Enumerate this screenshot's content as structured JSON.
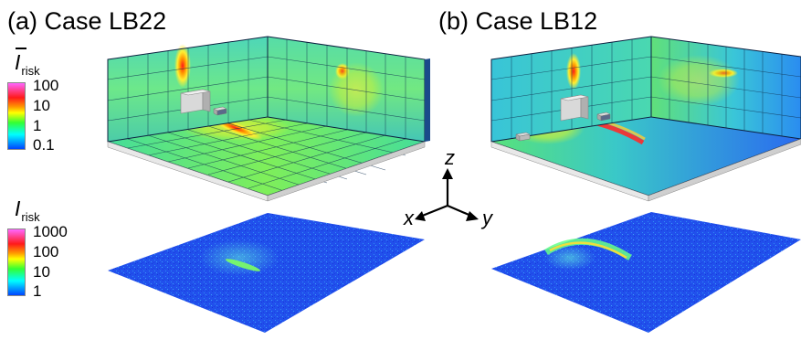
{
  "panels": [
    {
      "id": "a",
      "title": "(a) Case LB22"
    },
    {
      "id": "b",
      "title": "(b) Case LB12"
    }
  ],
  "colorbars": [
    {
      "symbol": "I",
      "subscript": "risk",
      "overbar": true,
      "ticks": [
        "100",
        "10",
        "1",
        "0.1"
      ]
    },
    {
      "symbol": "I",
      "subscript": "risk",
      "overbar": false,
      "ticks": [
        "1000",
        "100",
        "10",
        "1"
      ]
    }
  ],
  "axes": {
    "z": "z",
    "x": "x",
    "y": "y"
  },
  "colors": {
    "colormap": [
      "#ff66ff",
      "#ff0000",
      "#ffff00",
      "#33ff33",
      "#00ffff",
      "#0044ff"
    ],
    "floor_blue": "#1f4ff0",
    "wall_green": "#55e86a",
    "wall_cyan": "#3ad0e8"
  }
}
